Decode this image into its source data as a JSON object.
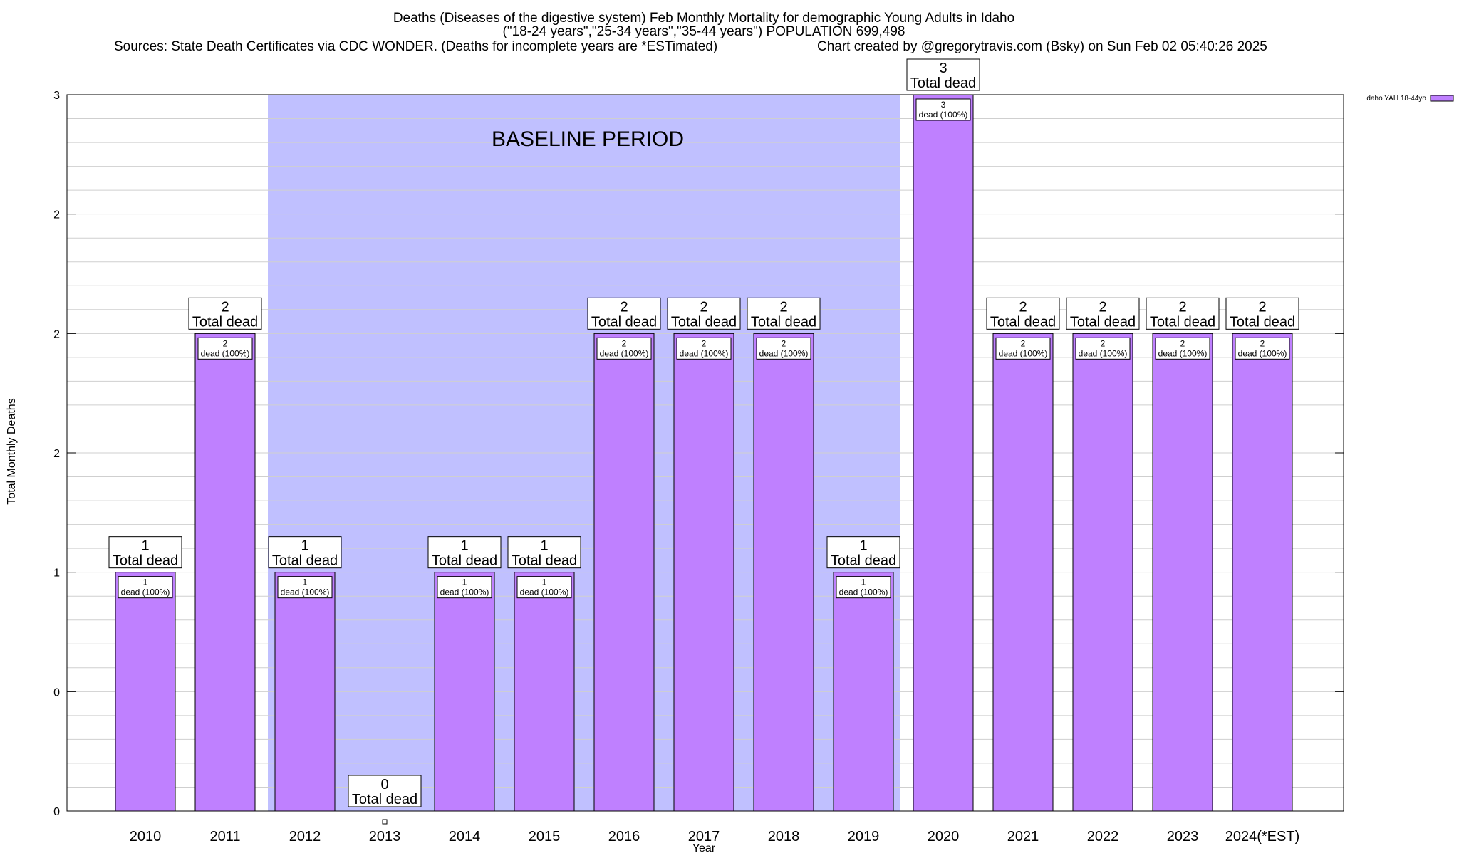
{
  "chart_data": {
    "type": "bar",
    "title_lines": [
      "Deaths (Diseases of the digestive system) Feb Monthly Mortality for demographic Young Adults in Idaho",
      "(\"18-24 years\",\"25-34 years\",\"35-44 years\") POPULATION 699,498"
    ],
    "sources": "Sources: State Death Certificates via CDC WONDER. (Deaths for incomplete years are *ESTimated)",
    "credit": "Chart created by @gregorytravis.com (Bsky) on Sun Feb 02 05:40:26 2025",
    "xlabel": "Year",
    "ylabel": "Total Monthly Deaths",
    "categories": [
      "2010",
      "2011",
      "2012",
      "2013",
      "2014",
      "2015",
      "2016",
      "2017",
      "2018",
      "2019",
      "2020",
      "2021",
      "2022",
      "2023",
      "2024(*EST)"
    ],
    "values": [
      1,
      2,
      1,
      0,
      1,
      1,
      2,
      2,
      2,
      1,
      3,
      2,
      2,
      2,
      2
    ],
    "ylim": [
      0,
      3
    ],
    "yticks": [
      {
        "value": 0,
        "label": "0"
      },
      {
        "value": 0.5,
        "label": "0"
      },
      {
        "value": 1,
        "label": "1"
      },
      {
        "value": 1.5,
        "label": "2"
      },
      {
        "value": 2,
        "label": "2"
      },
      {
        "value": 2.5,
        "label": "2"
      },
      {
        "value": 3,
        "label": "3"
      }
    ],
    "total_label_suffix": "Total dead",
    "inner_label_suffix": "dead (100%)",
    "baseline": {
      "start": "2012",
      "end": "2019",
      "label": "BASELINE PERIOD",
      "color": "#c0c0ff"
    },
    "bar_color": "#bf80ff",
    "legend": {
      "label": "daho YAH 18-44yo",
      "placement": "top-right"
    },
    "grid": true
  }
}
